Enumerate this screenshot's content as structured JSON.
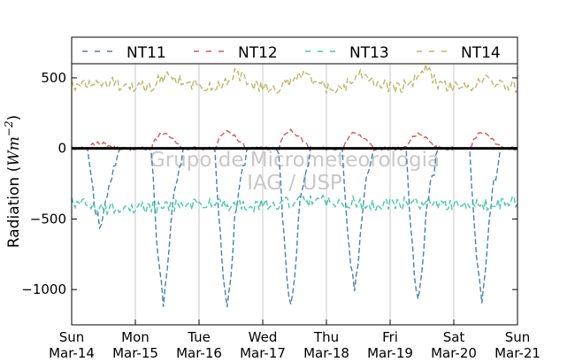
{
  "chart_data": {
    "type": "line",
    "title": "",
    "xlabel": "",
    "ylabel": "Radiation (Wm^-2)",
    "ylabel_main": "Radiation (",
    "ylabel_unit_base": "Wm",
    "ylabel_unit_exp": "−2",
    "ylabel_close": ")",
    "ylim": [
      -1250,
      600
    ],
    "xlim": [
      0,
      7
    ],
    "x_unit": "days since Sun Mar-14",
    "grid": "vertical",
    "legend": {
      "placement": "top",
      "ncol": 4
    },
    "x_ticks": [
      {
        "day": "Sun",
        "date": "Mar-14"
      },
      {
        "day": "Mon",
        "date": "Mar-15"
      },
      {
        "day": "Tue",
        "date": "Mar-16"
      },
      {
        "day": "Wed",
        "date": "Mar-17"
      },
      {
        "day": "Thu",
        "date": "Mar-18"
      },
      {
        "day": "Fri",
        "date": "Mar-19"
      },
      {
        "day": "Sat",
        "date": "Mar-20"
      },
      {
        "day": "Sun",
        "date": "Mar-21"
      }
    ],
    "y_ticks": [
      {
        "value": 500,
        "label": "500"
      },
      {
        "value": 0,
        "label": "0"
      },
      {
        "value": -500,
        "label": "−500"
      },
      {
        "value": -1000,
        "label": "−1000"
      }
    ],
    "zero_line": 0,
    "series": [
      {
        "name": "NT11",
        "color": "#4682b4",
        "daily_min": [
          -550,
          -1090,
          -1110,
          -1120,
          -1010,
          -1080,
          -1090
        ],
        "start": 0.25,
        "end": 0.75,
        "x": [
          0.0,
          0.25,
          0.31,
          0.38,
          0.44,
          0.5,
          0.56,
          0.63,
          0.69,
          0.75,
          0.79,
          1.0,
          1.25,
          1.31,
          1.38,
          1.44,
          1.5,
          1.56,
          1.63,
          1.69,
          1.75,
          1.79,
          2.0,
          2.25,
          2.31,
          2.38,
          2.44,
          2.5,
          2.56,
          2.63,
          2.69,
          2.75,
          2.79,
          3.0,
          3.25,
          3.31,
          3.38,
          3.44,
          3.5,
          3.56,
          3.63,
          3.69,
          3.75,
          3.79,
          4.0,
          4.25,
          4.31,
          4.38,
          4.44,
          4.5,
          4.56,
          4.63,
          4.69,
          4.75,
          4.79,
          5.0,
          5.25,
          5.31,
          5.38,
          5.44,
          5.5,
          5.56,
          5.63,
          5.69,
          5.75,
          5.79,
          6.0,
          6.25,
          6.31,
          6.38,
          6.44,
          6.5,
          6.56,
          6.63,
          6.69,
          6.75,
          6.79,
          7.0
        ],
        "y": [
          0,
          0,
          -220,
          -450,
          -550,
          -450,
          -300,
          -180,
          -110,
          0,
          0,
          0,
          0,
          -480,
          -880,
          -1090,
          -890,
          -500,
          -250,
          -160,
          0,
          0,
          0,
          0,
          -470,
          -900,
          -1110,
          -900,
          -500,
          -250,
          -160,
          0,
          0,
          0,
          0,
          -480,
          -910,
          -1120,
          -910,
          -500,
          -250,
          -160,
          0,
          0,
          0,
          0,
          -440,
          -820,
          -1010,
          -820,
          -460,
          -230,
          -140,
          0,
          0,
          0,
          0,
          -470,
          -880,
          -1080,
          -880,
          -500,
          -240,
          -150,
          0,
          0,
          0,
          0,
          -470,
          -890,
          -1090,
          -890,
          -500,
          -240,
          -150,
          0,
          0,
          0
        ]
      },
      {
        "name": "NT12",
        "color": "#cd5c5c",
        "x": [
          0.0,
          0.25,
          0.31,
          0.38,
          0.44,
          0.5,
          0.56,
          0.63,
          0.69,
          0.75,
          1.0,
          1.25,
          1.31,
          1.38,
          1.44,
          1.5,
          1.56,
          1.63,
          1.69,
          1.75,
          2.0,
          2.25,
          2.31,
          2.38,
          2.44,
          2.5,
          2.56,
          2.63,
          2.69,
          2.75,
          3.0,
          3.25,
          3.31,
          3.38,
          3.44,
          3.5,
          3.56,
          3.63,
          3.69,
          3.75,
          4.0,
          4.25,
          4.31,
          4.38,
          4.44,
          4.5,
          4.56,
          4.63,
          4.69,
          4.75,
          5.0,
          5.25,
          5.31,
          5.38,
          5.44,
          5.5,
          5.56,
          5.63,
          5.69,
          5.75,
          6.0,
          6.25,
          6.31,
          6.38,
          6.44,
          6.5,
          6.56,
          6.63,
          6.69,
          6.75,
          7.0
        ],
        "y": [
          0,
          0,
          25,
          40,
          30,
          45,
          25,
          20,
          10,
          0,
          0,
          0,
          60,
          95,
          110,
          95,
          80,
          50,
          25,
          0,
          0,
          0,
          70,
          110,
          130,
          110,
          90,
          55,
          30,
          0,
          0,
          0,
          75,
          115,
          130,
          110,
          90,
          55,
          30,
          0,
          0,
          0,
          60,
          95,
          110,
          95,
          80,
          50,
          25,
          0,
          0,
          0,
          55,
          90,
          105,
          90,
          75,
          45,
          20,
          0,
          0,
          0,
          60,
          95,
          110,
          95,
          80,
          50,
          25,
          0,
          0
        ]
      },
      {
        "name": "NT13",
        "color": "#48c9a9",
        "x": [
          0.0,
          0.25,
          0.5,
          0.75,
          1.0,
          1.25,
          1.5,
          1.75,
          2.0,
          2.25,
          2.5,
          2.75,
          3.0,
          3.25,
          3.5,
          3.75,
          4.0,
          4.25,
          4.5,
          4.75,
          5.0,
          5.25,
          5.5,
          5.75,
          6.0,
          6.25,
          6.5,
          6.75,
          7.0
        ],
        "y": [
          -390,
          -400,
          -430,
          -420,
          -420,
          -415,
          -410,
          -400,
          -395,
          -390,
          -400,
          -410,
          -395,
          -390,
          -380,
          -375,
          -370,
          -380,
          -390,
          -400,
          -395,
          -390,
          -395,
          -400,
          -395,
          -410,
          -400,
          -390,
          -380
        ]
      },
      {
        "name": "NT14",
        "color": "#bdb76b",
        "x": [
          0.0,
          0.25,
          0.44,
          0.56,
          0.75,
          1.0,
          1.25,
          1.44,
          1.56,
          1.75,
          2.0,
          2.25,
          2.44,
          2.56,
          2.75,
          3.0,
          3.25,
          3.44,
          3.56,
          3.75,
          4.0,
          4.25,
          4.44,
          4.56,
          4.75,
          5.0,
          5.25,
          5.44,
          5.56,
          5.75,
          6.0,
          6.25,
          6.44,
          6.56,
          6.75,
          7.0
        ],
        "y": [
          440,
          440,
          480,
          470,
          445,
          440,
          440,
          500,
          530,
          470,
          440,
          430,
          470,
          540,
          480,
          430,
          435,
          470,
          545,
          480,
          430,
          430,
          480,
          540,
          480,
          430,
          440,
          500,
          575,
          450,
          440,
          435,
          470,
          485,
          440,
          430
        ]
      }
    ],
    "watermark": [
      "Grupo de Micrometeorologia",
      "IAG / USP"
    ]
  }
}
